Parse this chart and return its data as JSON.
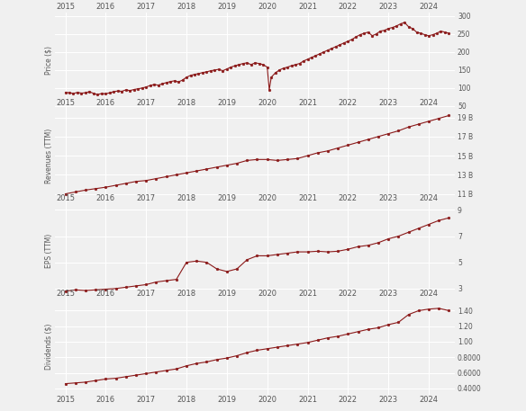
{
  "price": {
    "ylabel": "Price ($)",
    "yticks": [
      50,
      100,
      150,
      200,
      250,
      300
    ],
    "ylim": [
      45,
      310
    ],
    "data": [
      [
        2015.0,
        88
      ],
      [
        2015.1,
        87
      ],
      [
        2015.2,
        85
      ],
      [
        2015.3,
        88
      ],
      [
        2015.4,
        86
      ],
      [
        2015.5,
        87
      ],
      [
        2015.6,
        90
      ],
      [
        2015.7,
        85
      ],
      [
        2015.8,
        82
      ],
      [
        2015.9,
        85
      ],
      [
        2016.0,
        84
      ],
      [
        2016.1,
        87
      ],
      [
        2016.2,
        90
      ],
      [
        2016.3,
        92
      ],
      [
        2016.4,
        91
      ],
      [
        2016.5,
        95
      ],
      [
        2016.6,
        93
      ],
      [
        2016.7,
        96
      ],
      [
        2016.8,
        98
      ],
      [
        2016.9,
        100
      ],
      [
        2017.0,
        103
      ],
      [
        2017.1,
        107
      ],
      [
        2017.2,
        110
      ],
      [
        2017.3,
        108
      ],
      [
        2017.4,
        112
      ],
      [
        2017.5,
        115
      ],
      [
        2017.6,
        118
      ],
      [
        2017.7,
        120
      ],
      [
        2017.8,
        117
      ],
      [
        2017.9,
        122
      ],
      [
        2018.0,
        130
      ],
      [
        2018.1,
        135
      ],
      [
        2018.2,
        138
      ],
      [
        2018.3,
        140
      ],
      [
        2018.4,
        143
      ],
      [
        2018.5,
        145
      ],
      [
        2018.6,
        148
      ],
      [
        2018.7,
        150
      ],
      [
        2018.8,
        152
      ],
      [
        2018.9,
        148
      ],
      [
        2019.0,
        153
      ],
      [
        2019.1,
        158
      ],
      [
        2019.2,
        162
      ],
      [
        2019.3,
        165
      ],
      [
        2019.4,
        168
      ],
      [
        2019.5,
        170
      ],
      [
        2019.6,
        165
      ],
      [
        2019.7,
        170
      ],
      [
        2019.8,
        168
      ],
      [
        2019.9,
        165
      ],
      [
        2020.0,
        158
      ],
      [
        2020.05,
        95
      ],
      [
        2020.1,
        130
      ],
      [
        2020.2,
        142
      ],
      [
        2020.3,
        150
      ],
      [
        2020.4,
        155
      ],
      [
        2020.5,
        158
      ],
      [
        2020.6,
        162
      ],
      [
        2020.7,
        165
      ],
      [
        2020.8,
        168
      ],
      [
        2020.9,
        175
      ],
      [
        2021.0,
        180
      ],
      [
        2021.1,
        185
      ],
      [
        2021.2,
        190
      ],
      [
        2021.3,
        195
      ],
      [
        2021.4,
        200
      ],
      [
        2021.5,
        205
      ],
      [
        2021.6,
        210
      ],
      [
        2021.7,
        215
      ],
      [
        2021.8,
        220
      ],
      [
        2021.9,
        225
      ],
      [
        2022.0,
        230
      ],
      [
        2022.1,
        235
      ],
      [
        2022.2,
        242
      ],
      [
        2022.3,
        248
      ],
      [
        2022.4,
        252
      ],
      [
        2022.5,
        255
      ],
      [
        2022.6,
        245
      ],
      [
        2022.7,
        250
      ],
      [
        2022.8,
        258
      ],
      [
        2022.9,
        260
      ],
      [
        2023.0,
        265
      ],
      [
        2023.1,
        268
      ],
      [
        2023.2,
        272
      ],
      [
        2023.3,
        278
      ],
      [
        2023.4,
        282
      ],
      [
        2023.5,
        270
      ],
      [
        2023.6,
        265
      ],
      [
        2023.7,
        255
      ],
      [
        2023.8,
        252
      ],
      [
        2023.9,
        248
      ],
      [
        2024.0,
        245
      ],
      [
        2024.1,
        248
      ],
      [
        2024.2,
        252
      ],
      [
        2024.3,
        258
      ],
      [
        2024.4,
        255
      ],
      [
        2024.5,
        252
      ]
    ]
  },
  "revenue": {
    "ylabel": "Revenues (TTM)",
    "yticks_labels": [
      "11 B",
      "13 B",
      "15 B",
      "17 B",
      "19 B"
    ],
    "yticks_vals": [
      11000000000,
      13000000000,
      15000000000,
      17000000000,
      19000000000
    ],
    "ylim": [
      10000000000,
      20000000000
    ],
    "data": [
      [
        2015.0,
        11000000000
      ],
      [
        2015.25,
        11200000000
      ],
      [
        2015.5,
        11400000000
      ],
      [
        2015.75,
        11550000000
      ],
      [
        2016.0,
        11700000000
      ],
      [
        2016.25,
        11900000000
      ],
      [
        2016.5,
        12100000000
      ],
      [
        2016.75,
        12300000000
      ],
      [
        2017.0,
        12400000000
      ],
      [
        2017.25,
        12600000000
      ],
      [
        2017.5,
        12800000000
      ],
      [
        2017.75,
        13000000000
      ],
      [
        2018.0,
        13200000000
      ],
      [
        2018.25,
        13400000000
      ],
      [
        2018.5,
        13600000000
      ],
      [
        2018.75,
        13800000000
      ],
      [
        2019.0,
        14000000000
      ],
      [
        2019.25,
        14200000000
      ],
      [
        2019.5,
        14500000000
      ],
      [
        2019.75,
        14600000000
      ],
      [
        2020.0,
        14600000000
      ],
      [
        2020.25,
        14500000000
      ],
      [
        2020.5,
        14600000000
      ],
      [
        2020.75,
        14700000000
      ],
      [
        2021.0,
        15000000000
      ],
      [
        2021.25,
        15300000000
      ],
      [
        2021.5,
        15500000000
      ],
      [
        2021.75,
        15800000000
      ],
      [
        2022.0,
        16100000000
      ],
      [
        2022.25,
        16400000000
      ],
      [
        2022.5,
        16700000000
      ],
      [
        2022.75,
        17000000000
      ],
      [
        2023.0,
        17300000000
      ],
      [
        2023.25,
        17600000000
      ],
      [
        2023.5,
        18000000000
      ],
      [
        2023.75,
        18300000000
      ],
      [
        2024.0,
        18600000000
      ],
      [
        2024.25,
        18900000000
      ],
      [
        2024.5,
        19200000000
      ]
    ]
  },
  "eps": {
    "ylabel": "EPS (TTM)",
    "yticks": [
      3.0,
      5.0,
      7.0,
      9.0
    ],
    "ylim": [
      2.2,
      9.5
    ],
    "data": [
      [
        2015.0,
        2.8
      ],
      [
        2015.25,
        2.9
      ],
      [
        2015.5,
        2.85
      ],
      [
        2015.75,
        2.9
      ],
      [
        2016.0,
        2.95
      ],
      [
        2016.25,
        3.0
      ],
      [
        2016.5,
        3.1
      ],
      [
        2016.75,
        3.2
      ],
      [
        2017.0,
        3.3
      ],
      [
        2017.25,
        3.5
      ],
      [
        2017.5,
        3.6
      ],
      [
        2017.75,
        3.7
      ],
      [
        2018.0,
        5.0
      ],
      [
        2018.25,
        5.1
      ],
      [
        2018.5,
        5.0
      ],
      [
        2018.75,
        4.5
      ],
      [
        2019.0,
        4.3
      ],
      [
        2019.25,
        4.5
      ],
      [
        2019.5,
        5.2
      ],
      [
        2019.75,
        5.5
      ],
      [
        2020.0,
        5.5
      ],
      [
        2020.25,
        5.6
      ],
      [
        2020.5,
        5.7
      ],
      [
        2020.75,
        5.8
      ],
      [
        2021.0,
        5.8
      ],
      [
        2021.25,
        5.85
      ],
      [
        2021.5,
        5.8
      ],
      [
        2021.75,
        5.85
      ],
      [
        2022.0,
        6.0
      ],
      [
        2022.25,
        6.2
      ],
      [
        2022.5,
        6.3
      ],
      [
        2022.75,
        6.5
      ],
      [
        2023.0,
        6.8
      ],
      [
        2023.25,
        7.0
      ],
      [
        2023.5,
        7.3
      ],
      [
        2023.75,
        7.6
      ],
      [
        2024.0,
        7.9
      ],
      [
        2024.25,
        8.2
      ],
      [
        2024.5,
        8.4
      ]
    ]
  },
  "dividends": {
    "ylabel": "Dividends ($)",
    "yticks_labels": [
      "0.4000",
      "0.6000",
      "0.8000",
      "1.00",
      "1.20",
      "1.40"
    ],
    "yticks_vals": [
      0.4,
      0.6,
      0.8,
      1.0,
      1.2,
      1.4
    ],
    "ylim": [
      0.32,
      1.55
    ],
    "data": [
      [
        2015.0,
        0.46
      ],
      [
        2015.25,
        0.47
      ],
      [
        2015.5,
        0.48
      ],
      [
        2015.75,
        0.5
      ],
      [
        2016.0,
        0.52
      ],
      [
        2016.25,
        0.53
      ],
      [
        2016.5,
        0.55
      ],
      [
        2016.75,
        0.57
      ],
      [
        2017.0,
        0.59
      ],
      [
        2017.25,
        0.61
      ],
      [
        2017.5,
        0.63
      ],
      [
        2017.75,
        0.65
      ],
      [
        2018.0,
        0.69
      ],
      [
        2018.25,
        0.72
      ],
      [
        2018.5,
        0.74
      ],
      [
        2018.75,
        0.77
      ],
      [
        2019.0,
        0.79
      ],
      [
        2019.25,
        0.82
      ],
      [
        2019.5,
        0.86
      ],
      [
        2019.75,
        0.89
      ],
      [
        2020.0,
        0.91
      ],
      [
        2020.25,
        0.93
      ],
      [
        2020.5,
        0.95
      ],
      [
        2020.75,
        0.97
      ],
      [
        2021.0,
        0.99
      ],
      [
        2021.25,
        1.02
      ],
      [
        2021.5,
        1.05
      ],
      [
        2021.75,
        1.07
      ],
      [
        2022.0,
        1.1
      ],
      [
        2022.25,
        1.13
      ],
      [
        2022.5,
        1.16
      ],
      [
        2022.75,
        1.18
      ],
      [
        2023.0,
        1.22
      ],
      [
        2023.25,
        1.25
      ],
      [
        2023.5,
        1.35
      ],
      [
        2023.75,
        1.4
      ],
      [
        2024.0,
        1.42
      ],
      [
        2024.25,
        1.43
      ],
      [
        2024.5,
        1.4
      ]
    ]
  },
  "line_color": "#8B1A1A",
  "marker": "o",
  "markersize": 2.0,
  "linewidth": 0.8,
  "bg_color": "#f0f0f0",
  "grid_color": "#ffffff",
  "xticks": [
    2015,
    2016,
    2017,
    2018,
    2019,
    2020,
    2021,
    2022,
    2023,
    2024
  ],
  "xlim": [
    2014.75,
    2024.65
  ]
}
